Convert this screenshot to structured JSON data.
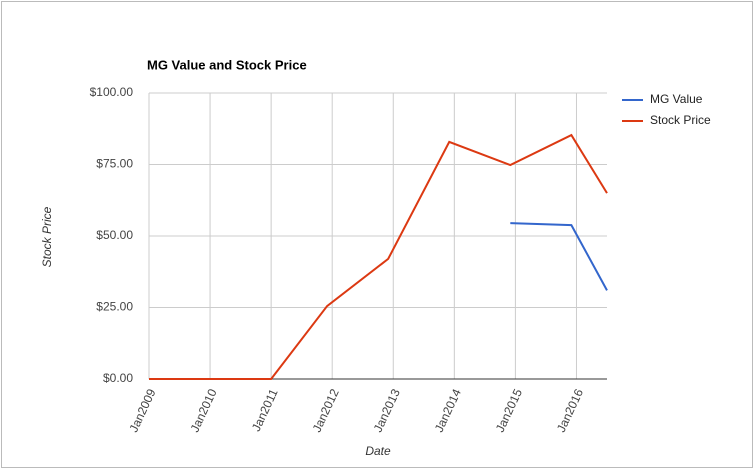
{
  "chart_data": {
    "type": "line",
    "title": "MG Value and Stock Price",
    "x_label": "Date",
    "y_label": "Stock Price",
    "xlim": [
      "2009-01",
      "2016-07"
    ],
    "xticks": [
      {
        "value": "2009-01",
        "label": "Jan2009"
      },
      {
        "value": "2010-01",
        "label": "Jan2010"
      },
      {
        "value": "2011-01",
        "label": "Jan2011"
      },
      {
        "value": "2012-01",
        "label": "Jan2012"
      },
      {
        "value": "2013-01",
        "label": "Jan2013"
      },
      {
        "value": "2014-01",
        "label": "Jan2014"
      },
      {
        "value": "2015-01",
        "label": "Jan2015"
      },
      {
        "value": "2016-01",
        "label": "Jan2016"
      }
    ],
    "ylim": [
      0,
      100
    ],
    "yticks": [
      {
        "value": 0,
        "label": "$0.00"
      },
      {
        "value": 25,
        "label": "$25.00"
      },
      {
        "value": 50,
        "label": "$50.00"
      },
      {
        "value": 75,
        "label": "$75.00"
      },
      {
        "value": 100,
        "label": "$100.00"
      }
    ],
    "grid": true,
    "legend": "right",
    "series": [
      {
        "name": "MG Value",
        "color": "#3366cc",
        "x": [
          "2014-12",
          "2015-12",
          "2016-07"
        ],
        "values": [
          54.5,
          53.8,
          31
        ]
      },
      {
        "name": "Stock Price",
        "color": "#dc3912",
        "x": [
          "2009-01",
          "2010-01",
          "2011-01",
          "2011-12",
          "2012-12",
          "2013-12",
          "2014-12",
          "2015-12",
          "2016-07"
        ],
        "values": [
          0,
          0,
          0,
          25.5,
          42,
          82.9,
          74.8,
          85.3,
          65
        ]
      }
    ]
  }
}
